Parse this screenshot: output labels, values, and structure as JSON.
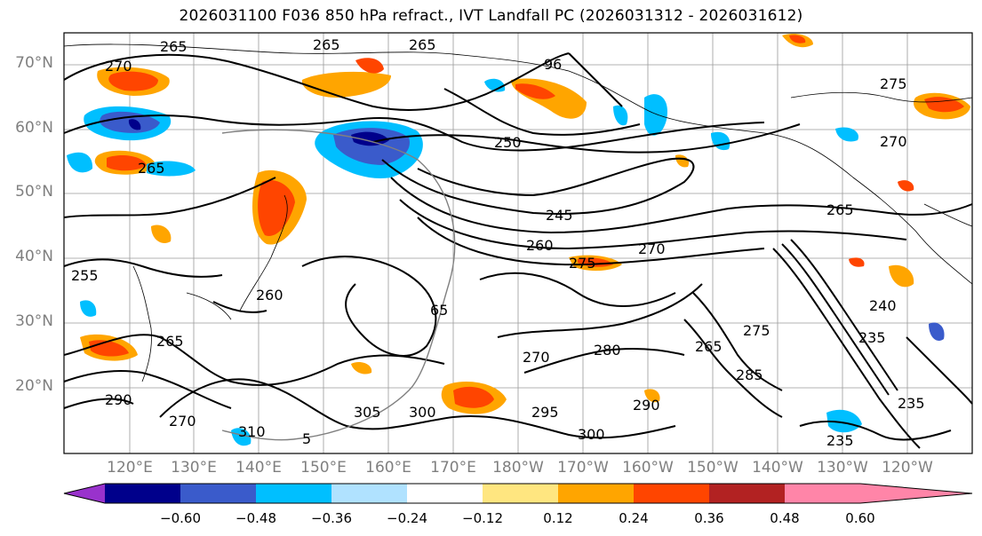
{
  "title": "2026031100 F036 850 hPa refract., IVT Landfall PC (2026031312 - 2026031612)",
  "lat_labels": [
    "70°N",
    "60°N",
    "50°N",
    "40°N",
    "30°N",
    "20°N"
  ],
  "lon_labels": [
    "120°E",
    "130°E",
    "140°E",
    "150°E",
    "160°E",
    "170°E",
    "180°W",
    "170°W",
    "160°W",
    "150°W",
    "140°W",
    "130°W",
    "120°W"
  ],
  "contour_labels": [
    "265",
    "265",
    "265",
    "270",
    "96",
    "275",
    "270",
    "250",
    "265",
    "245",
    "260",
    "270",
    "265",
    "275",
    "260",
    "240",
    "270",
    "280",
    "275",
    "285",
    "265",
    "235",
    "295",
    "300",
    "290",
    "310",
    "305",
    "300",
    "235",
    "265",
    "270",
    "290",
    "255",
    "5",
    "65",
    "235"
  ],
  "colorbar": {
    "ticks": [
      "−0.60",
      "−0.48",
      "−0.36",
      "−0.24",
      "−0.12",
      "0.12",
      "0.24",
      "0.36",
      "0.48",
      "0.60"
    ],
    "colors": [
      "#9932CC",
      "#00008B",
      "#3A5BCB",
      "#00BFFF",
      "#B0E2FF",
      "#FFFFFF",
      "#FFE680",
      "#FFA500",
      "#FF4500",
      "#B22222",
      "#FF85A8"
    ]
  }
}
